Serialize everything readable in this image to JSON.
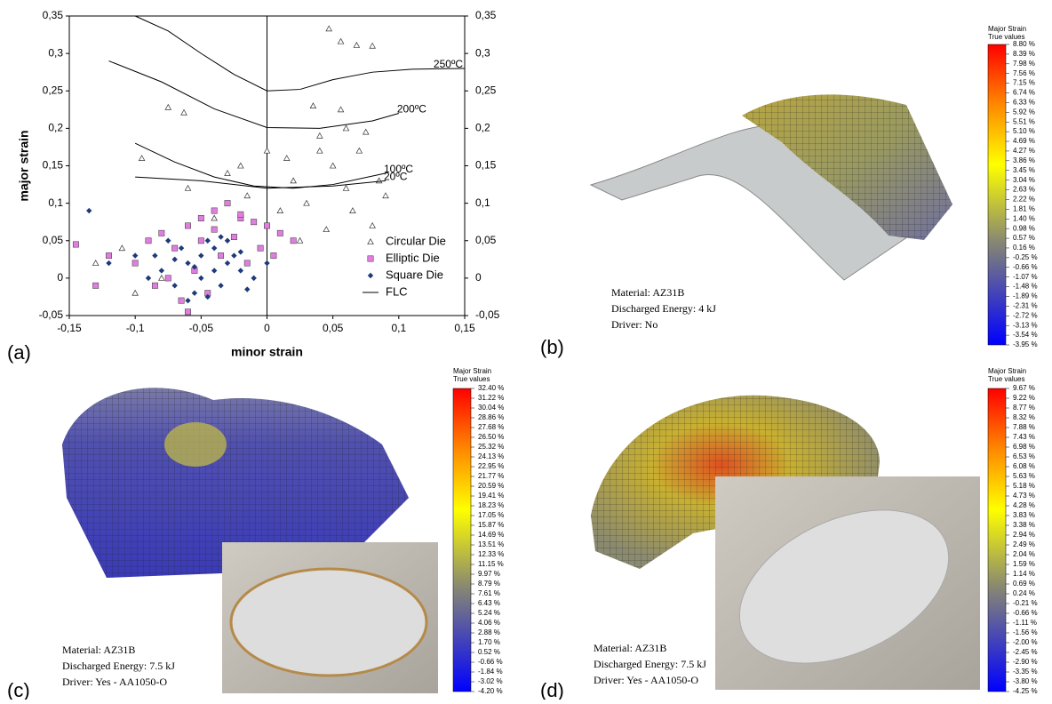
{
  "chart_data": {
    "type": "scatter",
    "panel_label": "(a)",
    "x_label": "minor strain",
    "y_label": "major strain",
    "xlim": [
      -0.15,
      0.15
    ],
    "ylim": [
      -0.05,
      0.35
    ],
    "xticks": [
      {
        "value": -0.15,
        "label": "-0,15"
      },
      {
        "value": -0.1,
        "label": "-0,1"
      },
      {
        "value": -0.05,
        "label": "-0,05"
      },
      {
        "value": 0,
        "label": "0"
      },
      {
        "value": 0.05,
        "label": "0,05"
      },
      {
        "value": 0.1,
        "label": "0,1"
      },
      {
        "value": 0.15,
        "label": "0,15"
      }
    ],
    "yticks": [
      {
        "value": -0.05,
        "label": "-0,05"
      },
      0,
      {
        "value": 0.05,
        "label": "0,05"
      },
      {
        "value": 0.1,
        "label": "0,1"
      },
      {
        "value": 0.15,
        "label": "0,15"
      },
      {
        "value": 0.2,
        "label": "0,2"
      },
      {
        "value": 0.25,
        "label": "0,25"
      },
      {
        "value": 0.3,
        "label": "0,3"
      },
      {
        "value": 0.35,
        "label": "0,35"
      }
    ],
    "series": [
      {
        "name": "Circular Die",
        "marker": "triangle",
        "color": "#ffffff",
        "x": [
          0.047,
          0.056,
          0.08,
          0.068,
          -0.075,
          -0.063,
          0.035,
          0.056,
          0.06,
          0.04,
          0.0,
          0.015,
          -0.02,
          -0.095,
          -0.03,
          0.02,
          0.05,
          0.075,
          0.07,
          -0.06,
          -0.11,
          -0.13,
          0.03,
          0.06,
          0.085,
          0.01,
          -0.04,
          0.09,
          -0.08,
          0.045,
          0.025,
          -0.1,
          0.065,
          0.04,
          -0.015,
          0.08
        ],
        "y": [
          0.333,
          0.316,
          0.31,
          0.311,
          0.228,
          0.221,
          0.23,
          0.225,
          0.2,
          0.19,
          0.17,
          0.16,
          0.15,
          0.16,
          0.14,
          0.13,
          0.15,
          0.195,
          0.17,
          0.12,
          0.04,
          0.02,
          0.1,
          0.12,
          0.13,
          0.09,
          0.08,
          0.11,
          0.0,
          0.065,
          0.05,
          -0.02,
          0.09,
          0.17,
          0.11,
          0.07
        ]
      },
      {
        "name": "Elliptic Die",
        "marker": "square",
        "color": "#e07ee0",
        "x": [
          -0.145,
          -0.12,
          -0.1,
          -0.09,
          -0.08,
          -0.07,
          -0.06,
          -0.05,
          -0.04,
          -0.03,
          -0.02,
          -0.01,
          0.0,
          0.01,
          0.02,
          -0.065,
          -0.055,
          -0.045,
          -0.035,
          -0.025,
          -0.075,
          -0.085,
          -0.015,
          -0.005,
          -0.13,
          -0.06,
          -0.04,
          -0.02,
          0.005,
          -0.05
        ],
        "y": [
          0.045,
          0.03,
          0.02,
          0.05,
          0.06,
          0.04,
          0.07,
          0.08,
          0.09,
          0.1,
          0.08,
          0.075,
          0.07,
          0.06,
          0.05,
          -0.03,
          0.01,
          -0.02,
          0.03,
          0.055,
          0.0,
          -0.01,
          0.02,
          0.04,
          -0.01,
          -0.045,
          0.065,
          0.085,
          0.03,
          0.05
        ]
      },
      {
        "name": "Square Die",
        "marker": "diamond",
        "color": "#1f3a7a",
        "x": [
          -0.135,
          -0.12,
          -0.1,
          -0.09,
          -0.08,
          -0.07,
          -0.06,
          -0.05,
          -0.04,
          -0.03,
          -0.02,
          -0.01,
          0.0,
          -0.065,
          -0.055,
          -0.045,
          -0.035,
          -0.025,
          -0.075,
          -0.085,
          -0.015,
          -0.05,
          -0.04,
          -0.06,
          -0.03,
          -0.07,
          -0.02,
          -0.045,
          -0.055,
          -0.035
        ],
        "y": [
          0.09,
          0.02,
          0.03,
          0.0,
          0.01,
          -0.01,
          0.02,
          0.03,
          0.04,
          0.02,
          0.01,
          0.0,
          0.02,
          0.04,
          -0.02,
          0.05,
          -0.01,
          0.03,
          0.05,
          0.03,
          -0.015,
          0.0,
          0.01,
          -0.03,
          0.05,
          0.025,
          0.035,
          -0.025,
          0.015,
          0.055
        ]
      },
      {
        "name": "FLC",
        "marker": "line",
        "color": "#000000",
        "curves": [
          {
            "label": "250ºC",
            "x": [
              -0.1,
              -0.075,
              -0.05,
              -0.025,
              0,
              0.025,
              0.05,
              0.08,
              0.11,
              0.15
            ],
            "y": [
              0.35,
              0.33,
              0.3,
              0.272,
              0.25,
              0.252,
              0.265,
              0.275,
              0.279,
              0.28
            ]
          },
          {
            "label": "200ºC",
            "x": [
              -0.12,
              -0.08,
              -0.04,
              0,
              0.04,
              0.08,
              0.1
            ],
            "y": [
              0.29,
              0.262,
              0.226,
              0.201,
              0.2,
              0.21,
              0.22
            ]
          },
          {
            "label": "100ºC",
            "x": [
              -0.1,
              -0.07,
              -0.04,
              -0.01,
              0.02,
              0.05,
              0.09
            ],
            "y": [
              0.18,
              0.155,
              0.135,
              0.123,
              0.12,
              0.125,
              0.14
            ]
          },
          {
            "label": "20ºC",
            "x": [
              -0.1,
              -0.05,
              0,
              0.05,
              0.09
            ],
            "y": [
              0.135,
              0.13,
              0.12,
              0.123,
              0.13
            ]
          }
        ]
      }
    ]
  },
  "panels": [
    {
      "label": "(b)",
      "colorbar_title": [
        "Major Strain",
        "True values"
      ],
      "info": [
        "Material:  AZ31B",
        "Discharged Energy:  4 kJ",
        "Driver:  No"
      ],
      "colorbar": [
        "8.80 %",
        "8.39 %",
        "7.98 %",
        "7.56 %",
        "7.15 %",
        "6.74 %",
        "6.33 %",
        "5.92 %",
        "5.51 %",
        "5.10 %",
        "4.69 %",
        "4.27 %",
        "3.86 %",
        "3.45 %",
        "3.04 %",
        "2.63 %",
        "2.22 %",
        "1.81 %",
        "1.40 %",
        "0.98 %",
        "0.57 %",
        "0.16 %",
        "-0.25 %",
        "-0.66 %",
        "-1.07 %",
        "-1.48 %",
        "-1.89 %",
        "-2.31 %",
        "-2.72 %",
        "-3.13 %",
        "-3.54 %",
        "-3.95 %"
      ]
    },
    {
      "label": "(c)",
      "colorbar_title": [
        "Major Strain",
        "True values"
      ],
      "info": [
        "Material:  AZ31B",
        "Discharged Energy:  7.5 kJ",
        "Driver:  Yes - AA1050-O"
      ],
      "colorbar": [
        "32.40 %",
        "31.22 %",
        "30.04 %",
        "28.86 %",
        "27.68 %",
        "26.50 %",
        "25.32 %",
        "24.13 %",
        "22.95 %",
        "21.77 %",
        "20.59 %",
        "19.41 %",
        "18.23 %",
        "17.05 %",
        "15.87 %",
        "14.69 %",
        "13.51 %",
        "12.33 %",
        "11.15 %",
        "9.97 %",
        "8.79 %",
        "7.61 %",
        "6.43 %",
        "5.24 %",
        "4.06 %",
        "2.88 %",
        "1.70 %",
        "0.52 %",
        "-0.66 %",
        "-1.84 %",
        "-3.02 %",
        "-4.20 %"
      ]
    },
    {
      "label": "(d)",
      "colorbar_title": [
        "Major Strain",
        "True values"
      ],
      "info": [
        "Material:  AZ31B",
        "Discharged Energy:  7.5 kJ",
        "Driver:  Yes - AA1050-O"
      ],
      "colorbar": [
        "9.67 %",
        "9.22 %",
        "8.77 %",
        "8.32 %",
        "7.88 %",
        "7.43 %",
        "6.98 %",
        "6.53 %",
        "6.08 %",
        "5.63 %",
        "5.18 %",
        "4.73 %",
        "4.28 %",
        "3.83 %",
        "3.38 %",
        "2.94 %",
        "2.49 %",
        "2.04 %",
        "1.59 %",
        "1.14 %",
        "0.69 %",
        "0.24 %",
        "-0.21 %",
        "-0.66 %",
        "-1.11 %",
        "-1.56 %",
        "-2.00 %",
        "-2.45 %",
        "-2.90 %",
        "-3.35 %",
        "-3.80 %",
        "-4.25 %"
      ]
    }
  ]
}
